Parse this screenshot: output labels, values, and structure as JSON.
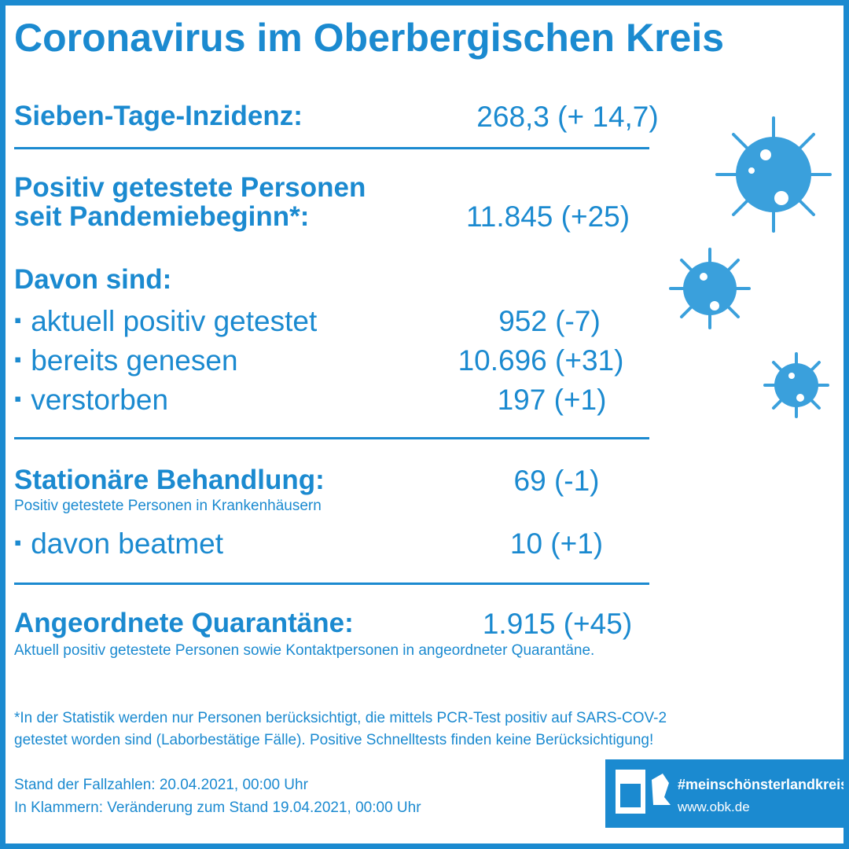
{
  "title": "Coronavirus im Oberbergischen Kreis",
  "incidence": {
    "label": "Sieben-Tage-Inzidenz:",
    "value": "268,3 (+ 14,7)"
  },
  "positive": {
    "label": [
      "Positiv getestete Personen",
      "seit Pandemiebeginn*:"
    ],
    "value": "11.845 (+25)"
  },
  "breakdown": {
    "heading": "Davon sind:",
    "items": [
      {
        "label": "aktuell positiv getestet",
        "value": "952 (-7)"
      },
      {
        "label": "bereits genesen",
        "value": "10.696 (+31)"
      },
      {
        "label": "verstorben",
        "value": "197 (+1)"
      }
    ]
  },
  "hospital": {
    "label": "Stationäre Behandlung:",
    "note": "Positiv getestete Personen in Krankenhäusern",
    "value": "69 (-1)",
    "item": {
      "label": "davon beatmet",
      "value": "10 (+1)"
    }
  },
  "quarantine": {
    "label": "Angeordnete Quarantäne:",
    "value": "1.915 (+45)",
    "note": "Aktuell positiv getestete Personen sowie Kontaktpersonen in angeordneter Quarantäne."
  },
  "footnote": [
    "*In der Statistik werden nur Personen berücksichtigt, die mittels PCR-Test positiv auf SARS-COV-2",
    "getestet worden sind (Laborbestätige Fälle). Positive Schnelltests finden keine Berücksichtigung!"
  ],
  "status": [
    "Stand der Fallzahlen: 20.04.2021, 00:00 Uhr",
    "In Klammern: Veränderung zum Stand 19.04.2021, 00:00 Uhr"
  ],
  "badge": {
    "hashtag": "#meinschönsterlandkreis",
    "url": "www.obk.de"
  }
}
